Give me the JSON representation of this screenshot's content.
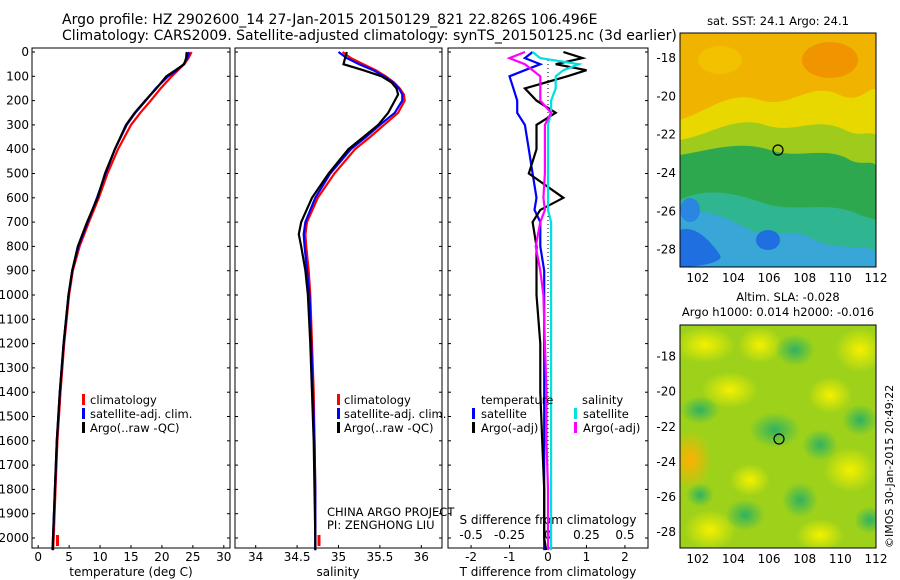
{
  "header": {
    "line1": "Argo profile: HZ 2902600_14 27-Jan-2015 20150129_821 22.826S 106.496E",
    "line2": "Climatology: CARS2009. Satellite-adjusted climatology: synTS_20150125.nc (3d earlier)"
  },
  "depth_ticks": [
    "0",
    "100",
    "200",
    "300",
    "400",
    "500",
    "600",
    "700",
    "800",
    "900",
    "1000",
    "1100",
    "1200",
    "1300",
    "1400",
    "1500",
    "1600",
    "1700",
    "1800",
    "1900",
    "2000"
  ],
  "colors": {
    "climatology": "#ff0000",
    "satellite": "#0000ff",
    "argo": "#000000",
    "sat_salinity": "#00e0e0",
    "argo_salinity_diff": "#ff00ff"
  },
  "chart_data": [
    {
      "type": "line",
      "xlabel": "temperature (deg C)",
      "xlim": [
        -1,
        31
      ],
      "xticks": [
        "0",
        "5",
        "10",
        "15",
        "20",
        "25",
        "30"
      ],
      "ylim": [
        2060,
        0
      ],
      "legend": {
        "placement": "center-left",
        "entries": [
          "climatology",
          "satellite-adj. clim.",
          "Argo(..raw -QC)"
        ]
      },
      "depth": [
        0,
        25,
        50,
        75,
        100,
        150,
        200,
        250,
        300,
        400,
        500,
        600,
        700,
        800,
        900,
        1000,
        1200,
        1400,
        1600,
        1800,
        2000,
        2050
      ],
      "series": [
        {
          "name": "climatology",
          "values": [
            24.8,
            24.3,
            23.6,
            22.6,
            21.6,
            19.8,
            18.2,
            16.5,
            15.0,
            12.9,
            11.2,
            9.8,
            8.2,
            6.7,
            5.6,
            5.0,
            4.2,
            3.6,
            3.1,
            2.8,
            2.5,
            2.4
          ]
        },
        {
          "name": "satellite-adj. clim.",
          "values": [
            24.4,
            24.1,
            23.5,
            22.4,
            21.0,
            19.0,
            17.4,
            15.7,
            14.3,
            12.4,
            10.9,
            9.5,
            8.0,
            6.5,
            5.5,
            4.9,
            4.1,
            3.5,
            3.0,
            2.7,
            2.4,
            2.3
          ]
        },
        {
          "name": "Argo(..raw -QC)",
          "values": [
            24.0,
            23.9,
            23.6,
            22.2,
            20.7,
            19.1,
            17.3,
            15.6,
            14.2,
            12.4,
            10.8,
            9.6,
            7.9,
            6.4,
            5.5,
            4.9,
            4.1,
            3.5,
            3.0,
            2.7,
            2.4,
            2.4
          ]
        }
      ]
    },
    {
      "type": "line",
      "xlabel": "salinity",
      "xlim": [
        33.75,
        36.25
      ],
      "xticks": [
        "34",
        "34.5",
        "35",
        "35.5",
        "36"
      ],
      "ylim": [
        2060,
        0
      ],
      "legend": {
        "placement": "center-right",
        "entries": [
          "climatology",
          "satellite-adj. clim.",
          "Argo(..raw -QC)"
        ]
      },
      "depth": [
        0,
        25,
        50,
        75,
        100,
        125,
        150,
        175,
        200,
        250,
        300,
        350,
        400,
        500,
        600,
        700,
        750,
        800,
        900,
        1000,
        1200,
        1400,
        1600,
        1800,
        2000,
        2050
      ],
      "series": [
        {
          "name": "climatology",
          "values": [
            35.05,
            35.15,
            35.3,
            35.45,
            35.57,
            35.67,
            35.74,
            35.79,
            35.8,
            35.72,
            35.55,
            35.38,
            35.2,
            34.95,
            34.75,
            34.62,
            34.6,
            34.61,
            34.64,
            34.66,
            34.68,
            34.7,
            34.71,
            34.72,
            34.72,
            34.72
          ]
        },
        {
          "name": "satellite-adj. clim.",
          "values": [
            35.0,
            35.1,
            35.25,
            35.42,
            35.55,
            35.66,
            35.73,
            35.77,
            35.77,
            35.68,
            35.5,
            35.33,
            35.15,
            34.9,
            34.72,
            34.6,
            34.58,
            34.59,
            34.62,
            34.65,
            34.67,
            34.69,
            34.71,
            34.72,
            34.72,
            34.72
          ]
        },
        {
          "name": "Argo(..raw -QC)",
          "values": [
            35.1,
            35.08,
            35.06,
            35.3,
            35.52,
            35.64,
            35.7,
            35.72,
            35.68,
            35.6,
            35.48,
            35.3,
            35.12,
            34.88,
            34.68,
            34.55,
            34.52,
            34.55,
            34.6,
            34.63,
            34.66,
            34.68,
            34.7,
            34.71,
            34.72,
            34.72
          ]
        }
      ]
    },
    {
      "type": "line",
      "xlabel": "T difference from climatology",
      "xlabel2": "S difference from climatology",
      "xlim": [
        -2.6,
        2.6
      ],
      "xticks": [
        "-2",
        "-1",
        "0",
        "1",
        "2"
      ],
      "xticks_s": [
        "-0.5",
        "-0.25",
        "0",
        "0.25",
        "0.5"
      ],
      "ylim": [
        2060,
        0
      ],
      "legend": {
        "placement": "bottom",
        "temperature_title": "temperature",
        "salinity_title": "salinity",
        "entries_t": [
          "satellite",
          "Argo(-adj)"
        ],
        "entries_s": [
          "satellite",
          "Argo(-adj)"
        ]
      },
      "depth": [
        0,
        25,
        50,
        75,
        100,
        150,
        200,
        250,
        300,
        400,
        500,
        600,
        650,
        700,
        800,
        900,
        1000,
        1200,
        1400,
        1600,
        1800,
        2000,
        2050
      ],
      "series": [
        {
          "name": "temperature satellite",
          "values": [
            -0.4,
            -0.6,
            -0.2,
            -0.6,
            -1.0,
            -0.9,
            -0.8,
            -0.8,
            -0.6,
            -0.5,
            -0.4,
            -0.3,
            -0.35,
            -0.2,
            -0.2,
            -0.1,
            -0.1,
            -0.1,
            -0.1,
            -0.1,
            -0.1,
            -0.1,
            -0.1
          ]
        },
        {
          "name": "temperature Argo(-adj)",
          "values": [
            0.4,
            0.9,
            0.2,
            1.0,
            0.5,
            -0.6,
            -0.3,
            0.2,
            -0.3,
            -0.3,
            -0.5,
            0.4,
            -0.2,
            -0.4,
            -0.3,
            -0.3,
            -0.3,
            -0.2,
            -0.2,
            -0.15,
            -0.1,
            -0.1,
            -0.05
          ]
        },
        {
          "name": "salinity satellite",
          "values": [
            -0.1,
            -0.05,
            0.2,
            0.1,
            0.05,
            0.05,
            0.02,
            0.02,
            0.0,
            0.0,
            0.0,
            0.0,
            0.0,
            0.02,
            0.02,
            0.02,
            0.02,
            0.02,
            0.02,
            0.02,
            0.02,
            0.02,
            0.02
          ]
        },
        {
          "name": "salinity Argo(-adj)",
          "values": [
            -0.15,
            -0.25,
            -0.15,
            -0.1,
            -0.05,
            -0.05,
            -0.05,
            0.02,
            -0.02,
            -0.02,
            -0.02,
            -0.03,
            -0.02,
            -0.05,
            -0.08,
            -0.05,
            -0.03,
            -0.02,
            -0.01,
            -0.01,
            0.0,
            0.0,
            0.0
          ]
        }
      ]
    }
  ],
  "project": {
    "line1": "CHINA ARGO PROJECT",
    "line2": "PI: ZENGHONG LIU"
  },
  "map_top": {
    "title": "sat. SST: 24.1  Argo: 24.1",
    "yticks": [
      "-18",
      "-20",
      "-22",
      "-24",
      "-26",
      "-28"
    ],
    "xticks": [
      "102",
      "104",
      "106",
      "108",
      "110",
      "112"
    ],
    "marker": {
      "lon": 106.5,
      "lat": -22.8
    }
  },
  "map_bottom": {
    "title1": "Altim. SLA: -0.028",
    "title2": "Argo h1000: 0.014 h2000: -0.016",
    "yticks": [
      "-18",
      "-20",
      "-22",
      "-24",
      "-26",
      "-28"
    ],
    "xticks": [
      "102",
      "104",
      "106",
      "108",
      "110",
      "112"
    ],
    "marker": {
      "lon": 106.5,
      "lat": -22.8
    }
  },
  "stamp": "©IMOS 30-Jan-2015 20:49:22"
}
